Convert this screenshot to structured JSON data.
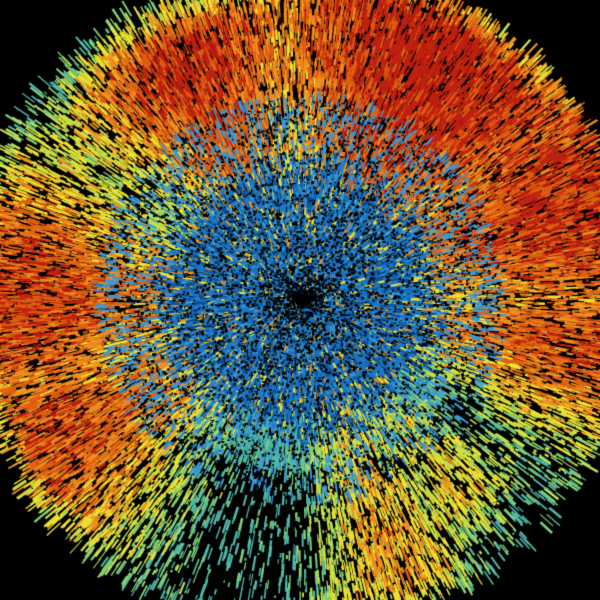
{
  "background_color": "#000000",
  "palette": {
    "dark_blue": "#0a4f9a",
    "blue": "#1a78c8",
    "light_blue": "#3a9ad8",
    "teal": "#4fb8a8",
    "green": "#7ccf78",
    "yellow_green": "#c8e048",
    "yellow": "#f0e030",
    "orange": "#f09020",
    "dark_orange": "#e06010",
    "red": "#c02010"
  },
  "center_marker_color": "#000000"
}
